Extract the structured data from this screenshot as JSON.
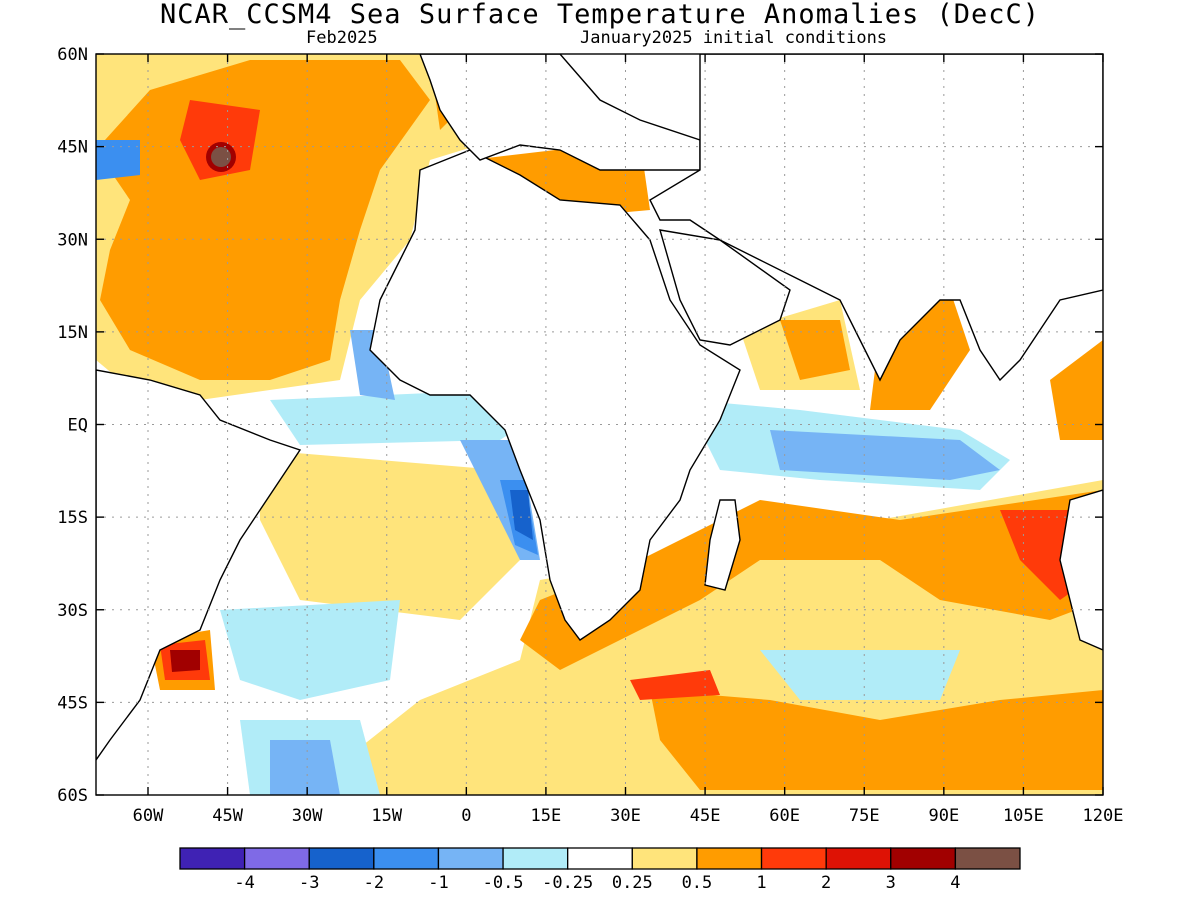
{
  "title": "NCAR_CCSM4 Sea Surface Temperature Anomalies (DecC)",
  "subtitle_left": "Feb2025",
  "subtitle_right": "January2025 initial conditions",
  "lat_labels": [
    "60N",
    "45N",
    "30N",
    "15N",
    "EQ",
    "15S",
    "30S",
    "45S",
    "60S"
  ],
  "lon_labels": [
    "60W",
    "45W",
    "30W",
    "15W",
    "0",
    "15E",
    "30E",
    "45E",
    "60E",
    "75E",
    "90E",
    "105E",
    "120E"
  ],
  "colorbar": {
    "colors": [
      "#3f22b4",
      "#7f6ae6",
      "#1662cc",
      "#3b8ff0",
      "#76b4f5",
      "#b1ecf8",
      "#ffffff",
      "#ffe47b",
      "#ff9c00",
      "#ff3a0a",
      "#de1205",
      "#a10000",
      "#7b5044"
    ],
    "labels": [
      "-4",
      "-3",
      "-2",
      "-1",
      "-0.5",
      "-0.25",
      "0.25",
      "0.5",
      "1",
      "2",
      "3",
      "4"
    ]
  }
}
